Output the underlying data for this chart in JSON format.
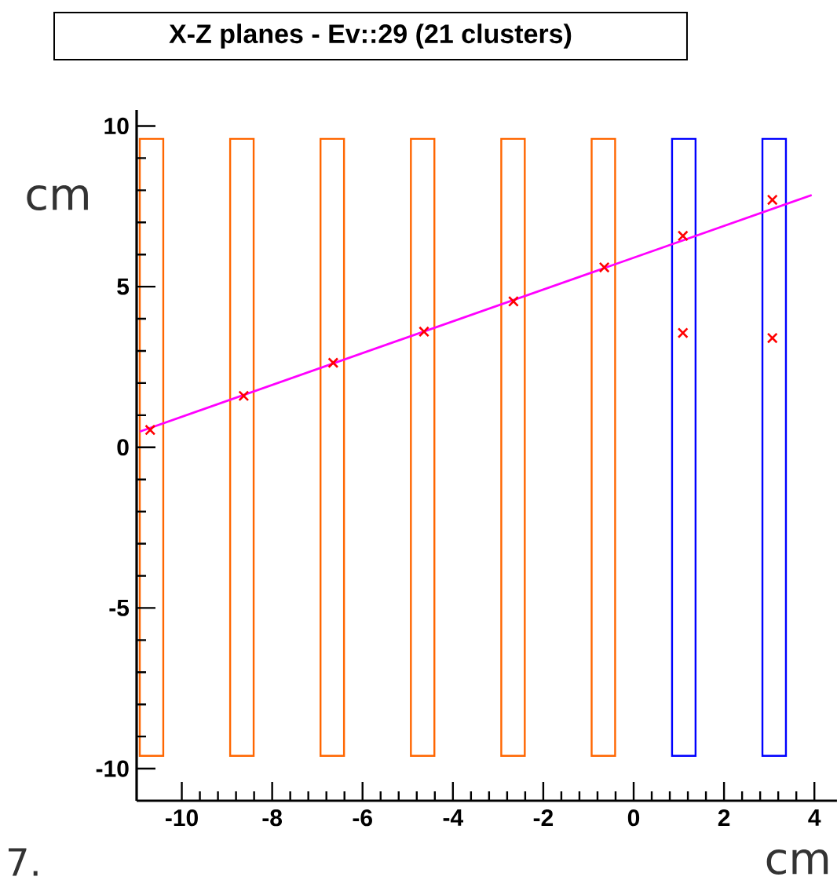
{
  "chart_data": {
    "type": "scatter",
    "title": "X-Z planes - Ev::29 (21 clusters)",
    "xlabel": "cm",
    "ylabel": "cm",
    "annotations": [
      "7."
    ],
    "xlim": [
      -11,
      4.5
    ],
    "ylim": [
      -11,
      10.5
    ],
    "xticks": [
      -10,
      -8,
      -6,
      -4,
      -2,
      0,
      2,
      4
    ],
    "yticks": [
      -10,
      -5,
      0,
      5,
      10
    ],
    "grid": false,
    "series": [
      {
        "type": "bar",
        "color": "#ff6600",
        "x": [
          -10.67,
          -8.67,
          -6.67,
          -4.67,
          -2.67,
          -0.67
        ],
        "base": [
          -9.6,
          -9.6,
          -9.6,
          -9.6,
          -9.6,
          -9.6
        ],
        "values": [
          19.2,
          19.2,
          19.2,
          19.2,
          19.2,
          19.2
        ]
      },
      {
        "type": "bar",
        "color": "#0000ff",
        "x": [
          1.11,
          3.11
        ],
        "base": [
          -9.6,
          -9.6
        ],
        "values": [
          19.2,
          19.2
        ]
      },
      {
        "type": "line",
        "color": "#ff00ff",
        "x": [
          -10.93,
          3.94
        ],
        "values": [
          0.49,
          7.85
        ]
      },
      {
        "color": "#ff0000",
        "marker": "cross",
        "x": [
          -10.7,
          -8.63,
          -6.65,
          -4.64,
          -2.66,
          -0.65,
          1.09,
          1.09,
          3.07,
          3.07
        ],
        "values": [
          0.54,
          1.6,
          2.63,
          3.6,
          4.54,
          5.6,
          6.58,
          3.56,
          7.7,
          3.4
        ]
      }
    ]
  }
}
